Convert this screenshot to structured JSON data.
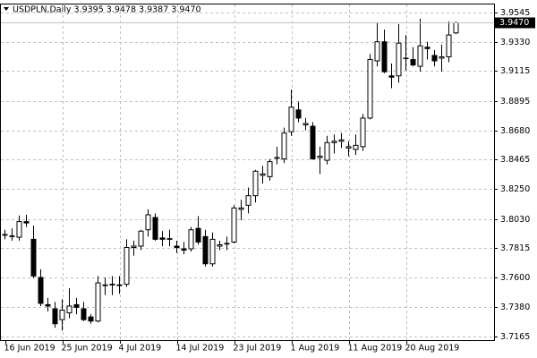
{
  "chart_data": {
    "type": "candlestick",
    "title": "USDPLN,Daily  3.9395 3.9478 3.9387 3.9470",
    "categories": [
      "16 Jun 2019",
      null,
      null,
      null,
      null,
      null,
      null,
      null,
      "25 Jun 2019",
      null,
      null,
      null,
      null,
      null,
      null,
      null,
      "4 Jul 2019",
      null,
      null,
      null,
      null,
      null,
      null,
      null,
      "14 Jul 2019",
      null,
      null,
      null,
      null,
      null,
      null,
      null,
      "23 Jul 2019",
      null,
      null,
      null,
      null,
      null,
      null,
      null,
      "1 Aug 2019",
      null,
      null,
      null,
      null,
      null,
      null,
      null,
      "11 Aug 2019",
      null,
      null,
      null,
      null,
      null,
      null,
      null,
      "20 Aug 2019",
      null,
      null,
      null,
      null,
      null,
      null,
      null
    ],
    "open": [
      3.791,
      3.7905,
      3.7895,
      3.801,
      3.788,
      3.76,
      3.74,
      3.737,
      3.729,
      3.734,
      3.74,
      3.737,
      3.731,
      3.728,
      3.754,
      3.7545,
      3.754,
      3.755,
      3.782,
      3.783,
      3.795,
      3.804,
      3.789,
      3.7885,
      3.783,
      3.781,
      3.781,
      3.796,
      3.79,
      3.77,
      3.783,
      3.7845,
      3.786,
      3.81,
      3.813,
      3.82,
      3.835,
      3.834,
      3.8475,
      3.847,
      3.867,
      3.883,
      3.872,
      3.871,
      3.848,
      3.846,
      3.859,
      3.86,
      3.855,
      3.854,
      3.856,
      3.877,
      3.919,
      3.933,
      3.908,
      3.908,
      3.921,
      3.92,
      3.915,
      3.929,
      3.923,
      3.921,
      3.922,
      3.9395
    ],
    "high": [
      3.795,
      3.796,
      3.8055,
      3.806,
      3.798,
      3.766,
      3.745,
      3.742,
      3.744,
      3.752,
      3.745,
      3.742,
      3.733,
      3.761,
      3.76,
      3.761,
      3.761,
      3.788,
      3.787,
      3.795,
      3.81,
      3.807,
      3.794,
      3.795,
      3.787,
      3.786,
      3.797,
      3.805,
      3.795,
      3.793,
      3.787,
      3.79,
      3.813,
      3.817,
      3.826,
      3.839,
      3.842,
      3.847,
      3.856,
      3.87,
      3.898,
      3.889,
      3.877,
      3.874,
      3.856,
      3.864,
      3.865,
      3.866,
      3.86,
      3.865,
      3.88,
      3.924,
      3.947,
      3.942,
      3.917,
      3.946,
      3.938,
      3.929,
      3.95,
      3.933,
      3.927,
      3.931,
      3.948,
      3.9478
    ],
    "low": [
      3.788,
      3.787,
      3.787,
      3.797,
      3.7595,
      3.739,
      3.735,
      3.723,
      3.721,
      3.73,
      3.733,
      3.728,
      3.726,
      3.727,
      3.747,
      3.747,
      3.748,
      3.753,
      3.776,
      3.78,
      3.79,
      3.787,
      3.783,
      3.783,
      3.778,
      3.777,
      3.779,
      3.784,
      3.768,
      3.768,
      3.78,
      3.78,
      3.785,
      3.802,
      3.807,
      3.815,
      3.829,
      3.831,
      3.843,
      3.844,
      3.864,
      3.874,
      3.868,
      3.847,
      3.836,
      3.843,
      3.851,
      3.855,
      3.849,
      3.85,
      3.853,
      3.876,
      3.915,
      3.91,
      3.899,
      3.903,
      3.912,
      3.915,
      3.911,
      3.92,
      3.915,
      3.911,
      3.918,
      3.9387
    ],
    "close": [
      3.7915,
      3.79,
      3.801,
      3.8,
      3.761,
      3.741,
      3.739,
      3.726,
      3.736,
      3.739,
      3.738,
      3.729,
      3.728,
      3.756,
      3.7545,
      3.755,
      3.7545,
      3.782,
      3.783,
      3.794,
      3.806,
      3.788,
      3.788,
      3.788,
      3.782,
      3.78,
      3.795,
      3.786,
      3.77,
      3.788,
      3.784,
      3.785,
      3.811,
      3.811,
      3.82,
      3.838,
      3.836,
      3.845,
      3.848,
      3.866,
      3.885,
      3.877,
      3.873,
      3.847,
      3.849,
      3.859,
      3.86,
      3.861,
      3.856,
      3.857,
      3.877,
      3.92,
      3.933,
      3.911,
      3.907,
      3.932,
      3.921,
      3.916,
      3.93,
      3.928,
      3.919,
      3.922,
      3.938,
      3.947
    ],
    "ylim": [
      3.714,
      3.9604
    ],
    "yticks": [
      {
        "value": 3.9545,
        "label": "3.9545"
      },
      {
        "value": 3.933,
        "label": "3.9330"
      },
      {
        "value": 3.9115,
        "label": "3.9115"
      },
      {
        "value": 3.8895,
        "label": "3.8895"
      },
      {
        "value": 3.868,
        "label": "3.8680"
      },
      {
        "value": 3.8465,
        "label": "3.8465"
      },
      {
        "value": 3.825,
        "label": "3.8250"
      },
      {
        "value": 3.803,
        "label": "3.8030"
      },
      {
        "value": 3.7815,
        "label": "3.7815"
      },
      {
        "value": 3.76,
        "label": "3.7600"
      },
      {
        "value": 3.738,
        "label": "3.7380"
      },
      {
        "value": 3.7165,
        "label": "3.7165"
      }
    ],
    "last_price": {
      "value": 3.947,
      "label": "3.9470"
    },
    "grid": true,
    "up_color": "#ffffff",
    "down_color": "#000000",
    "outline_color": "#000000"
  }
}
